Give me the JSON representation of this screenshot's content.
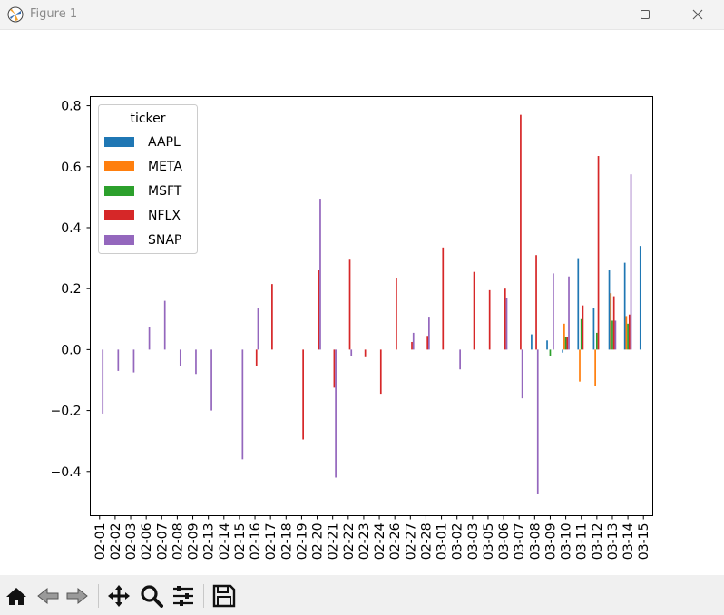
{
  "window": {
    "title": "Figure 1",
    "minimize_icon": "minimize-icon",
    "maximize_icon": "maximize-icon",
    "close_icon": "close-icon"
  },
  "toolbar": {
    "icons": [
      "home-icon",
      "back-icon",
      "forward-icon",
      "pan-icon",
      "zoom-icon",
      "configure-icon",
      "save-icon"
    ]
  },
  "chart_data": {
    "type": "bar",
    "categories": [
      "02-01",
      "02-02",
      "02-03",
      "02-06",
      "02-07",
      "02-08",
      "02-09",
      "02-13",
      "02-14",
      "02-15",
      "02-16",
      "02-17",
      "02-18",
      "02-19",
      "02-20",
      "02-21",
      "02-22",
      "02-23",
      "02-24",
      "02-26",
      "02-27",
      "02-28",
      "03-01",
      "03-02",
      "03-03",
      "03-05",
      "03-06",
      "03-07",
      "03-08",
      "03-09",
      "03-10",
      "03-11",
      "03-12",
      "03-13",
      "03-14",
      "03-15"
    ],
    "series": [
      {
        "name": "AAPL",
        "color": "#1f77b4",
        "values": [
          0,
          0,
          0,
          0,
          0,
          0,
          0,
          0,
          0,
          0,
          0,
          0,
          0,
          0,
          0,
          0,
          0,
          0,
          0,
          0,
          0,
          0,
          0,
          0,
          0,
          0,
          0,
          0,
          0.05,
          0.03,
          -0.01,
          0.3,
          0.135,
          0.26,
          0.285,
          0.34
        ]
      },
      {
        "name": "META",
        "color": "#ff7f0e",
        "values": [
          0,
          0,
          0,
          0,
          0,
          0,
          0,
          0,
          0,
          0,
          0,
          0,
          0,
          0,
          0,
          0,
          0,
          0,
          0,
          0,
          0,
          0,
          0,
          0,
          0,
          0,
          0,
          0,
          0,
          0,
          0.085,
          -0.105,
          -0.12,
          0.185,
          0.11,
          0
        ]
      },
      {
        "name": "MSFT",
        "color": "#2ca02c",
        "values": [
          0,
          0,
          0,
          0,
          0,
          0,
          0,
          0,
          0,
          0,
          0,
          0,
          0,
          0,
          0,
          0,
          0,
          0,
          0,
          0,
          0,
          0,
          0,
          0,
          0,
          0,
          0,
          0,
          0,
          -0.02,
          0.04,
          0.1,
          0.055,
          0.095,
          0.085,
          0
        ]
      },
      {
        "name": "NFLX",
        "color": "#d62728",
        "values": [
          0,
          0,
          0,
          0,
          0,
          0,
          0,
          0,
          0,
          0,
          -0.055,
          0.215,
          0,
          -0.295,
          0.26,
          -0.125,
          0.295,
          -0.025,
          -0.145,
          0.235,
          0.025,
          0.045,
          0.335,
          0,
          0.255,
          0.195,
          0.2,
          0.77,
          0.31,
          0,
          0.04,
          0.145,
          0.635,
          0.175,
          0.115,
          0
        ]
      },
      {
        "name": "SNAP",
        "color": "#9467bd",
        "values": [
          -0.21,
          -0.07,
          -0.075,
          0.075,
          0.16,
          -0.055,
          -0.08,
          -0.2,
          0,
          -0.36,
          0.135,
          0,
          0,
          0,
          0.495,
          -0.42,
          -0.02,
          0,
          0,
          0,
          0.055,
          0.105,
          0,
          -0.065,
          0,
          0,
          0.17,
          -0.16,
          -0.475,
          0.25,
          0.24,
          0,
          0,
          0.095,
          0.575,
          0
        ]
      }
    ],
    "xlabel": "",
    "ylabel": "",
    "ylim": [
      -0.545,
      0.83
    ],
    "yticks": [
      -0.4,
      -0.2,
      0.0,
      0.2,
      0.4,
      0.6,
      0.8
    ],
    "ytick_labels": [
      "−0.4",
      "−0.2",
      "0.0",
      "0.2",
      "0.4",
      "0.6",
      "0.8"
    ],
    "legend_title": "ticker",
    "legend_position": "upper-left",
    "grid": false
  }
}
